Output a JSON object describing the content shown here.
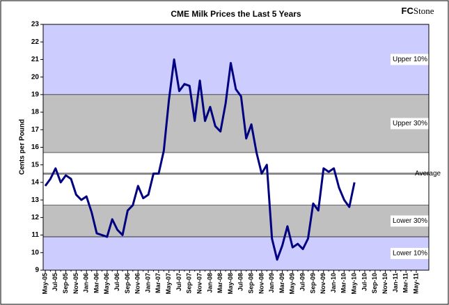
{
  "chart_data": {
    "type": "line",
    "title": "CME Milk Prices the Last 5 Years",
    "logo": {
      "bold": "FC",
      "rest": "Stone"
    },
    "y_label": "Cents per Pound",
    "ylim": [
      9,
      23
    ],
    "yticks": [
      9,
      10,
      11,
      12,
      13,
      14,
      15,
      16,
      17,
      18,
      19,
      20,
      21,
      22,
      23
    ],
    "categories": [
      "May-05",
      null,
      "Jul-05",
      null,
      "Sep-05",
      null,
      "Nov-05",
      null,
      "Jan-06",
      null,
      "Mar-06",
      null,
      "May-06",
      null,
      "Jul-06",
      null,
      "Sep-06",
      null,
      "Nov-06",
      null,
      "Jan-07",
      null,
      "Mar-07",
      null,
      "May-07",
      null,
      "Jul-07",
      null,
      "Sep-07",
      null,
      "Nov-07",
      null,
      "Jan-08",
      null,
      "Mar-08",
      null,
      "May-08",
      null,
      "Jul-08",
      null,
      "Sep-08",
      null,
      "Nov-08",
      null,
      "Jan-09",
      null,
      "Mar-09",
      null,
      "May-09",
      null,
      "Jul-09",
      null,
      "Sep-09",
      null,
      "Nov-09",
      null,
      "Jan-10",
      null,
      "Mar-10",
      null,
      "May-10",
      null,
      "Jul-10",
      null,
      "Sep-10",
      null,
      "Nov-10",
      null,
      "Jan-11",
      null,
      "Mar-11",
      null,
      "May-11"
    ],
    "series": [
      {
        "color": "#000080",
        "values": [
          13.8,
          14.2,
          14.8,
          14.0,
          14.4,
          14.2,
          13.3,
          13.0,
          13.2,
          12.3,
          11.1,
          11.0,
          10.9,
          11.9,
          11.3,
          11.0,
          12.4,
          12.7,
          13.8,
          13.1,
          13.3,
          14.5,
          14.5,
          15.8,
          18.7,
          21.0,
          19.2,
          19.6,
          19.5,
          17.5,
          19.8,
          17.5,
          18.3,
          17.2,
          16.9,
          18.5,
          20.8,
          19.3,
          18.9,
          16.5,
          17.3,
          15.7,
          14.5,
          15.0,
          10.8,
          9.6,
          10.4,
          11.5,
          10.3,
          10.5,
          10.2,
          10.8,
          12.8,
          12.4,
          14.8,
          14.6,
          14.8,
          13.7,
          13.0,
          12.6,
          14.0,
          null,
          null,
          null,
          null,
          null,
          null,
          null,
          null,
          null,
          null,
          null,
          null
        ]
      }
    ],
    "bands": [
      {
        "label": "Upper 10%",
        "from": 19,
        "to": 23,
        "color": "#ccccff"
      },
      {
        "label": "Upper 30%",
        "from": 15.7,
        "to": 19,
        "color": "#c0c0c0"
      },
      {
        "label": "Lower 30%",
        "from": 10.9,
        "to": 12.7,
        "color": "#c0c0c0"
      },
      {
        "label": "Lower 10%",
        "from": 9,
        "to": 10.9,
        "color": "#ccccff"
      }
    ],
    "average": {
      "label": "Average",
      "value": 14.5,
      "color": "#888888"
    }
  }
}
